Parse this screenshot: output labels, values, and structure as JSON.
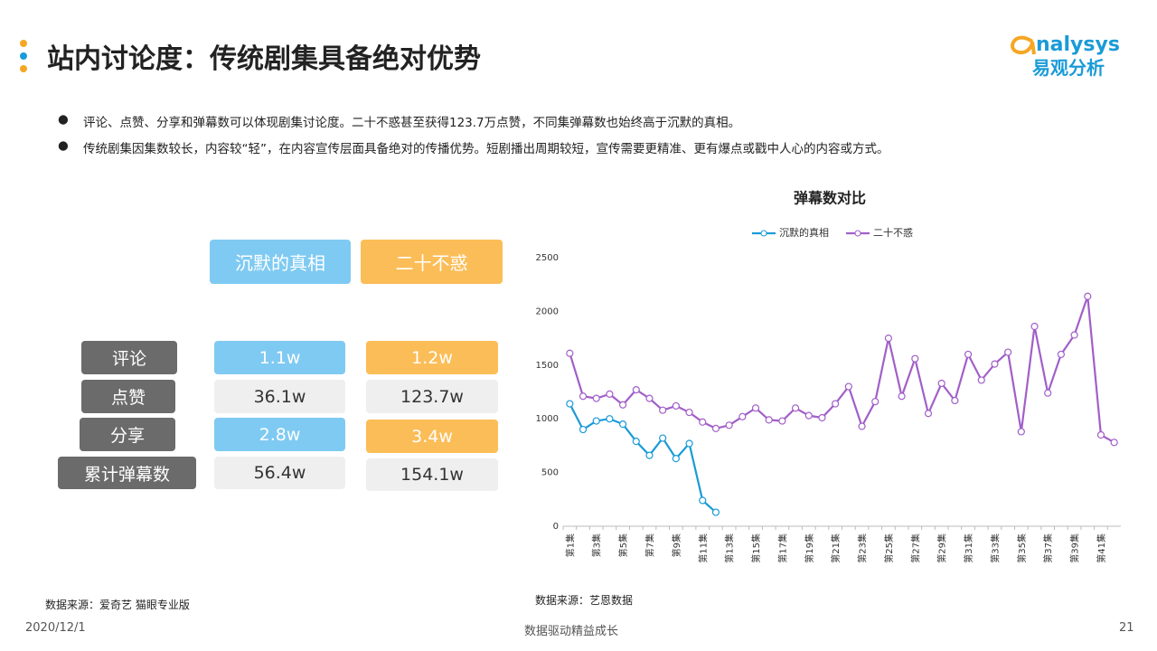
{
  "header": {
    "title": "站内讨论度：传统剧集具备绝对优势"
  },
  "logo": {
    "en": "nalysys",
    "cn": "易观分析"
  },
  "bullets": [
    "评论、点赞、分享和弹幕数可以体现剧集讨论度。二十不惑甚至获得123.7万点赞，不同集弹幕数也始终高于沉默的真相。",
    "传统剧集因集数较长，内容较“轻”，在内容宣传层面具备绝对的传播优势。短剧播出周期较短，宣传需要更精准、更有爆点或戳中人心的内容或方式。"
  ],
  "table": {
    "columns": [
      "沉默的真相",
      "二十不惑"
    ],
    "rows": [
      [
        "评论",
        "1.1w",
        "1.2w"
      ],
      [
        "点赞",
        "36.1w",
        "123.7w"
      ],
      [
        "分享",
        "2.8w",
        "3.4w"
      ],
      [
        "累计弹幕数",
        "56.4w",
        "154.1w"
      ]
    ]
  },
  "chart_data": {
    "type": "line",
    "title": "弹幕数对比",
    "categories": [
      "第1集",
      null,
      "第3集",
      null,
      "第5集",
      null,
      "第7集",
      null,
      "第9集",
      null,
      "第11集",
      null,
      "第13集",
      null,
      "第15集",
      null,
      "第17集",
      null,
      "第19集",
      null,
      "第21集",
      null,
      "第23集",
      null,
      "第25集",
      null,
      "第27集",
      null,
      "第29集",
      null,
      "第31集",
      null,
      "第33集",
      null,
      "第35集",
      null,
      "第37集",
      null,
      "第39集",
      null,
      "第41集",
      null
    ],
    "series": [
      {
        "name": "沉默的真相",
        "color": "#1a9bd7",
        "values": [
          1140,
          900,
          980,
          1000,
          950,
          790,
          660,
          820,
          630,
          770,
          240,
          130,
          null,
          null,
          null,
          null,
          null,
          null,
          null,
          null,
          null,
          null,
          null,
          null,
          null,
          null,
          null,
          null,
          null,
          null,
          null,
          null,
          null,
          null,
          null,
          null,
          null,
          null,
          null,
          null,
          null,
          null
        ]
      },
      {
        "name": "二十不惑",
        "color": "#a15fc9",
        "values": [
          1610,
          1210,
          1190,
          1230,
          1130,
          1270,
          1190,
          1080,
          1120,
          1060,
          970,
          910,
          940,
          1020,
          1100,
          990,
          980,
          1100,
          1030,
          1010,
          1140,
          1300,
          930,
          1160,
          1750,
          1210,
          1560,
          1050,
          1330,
          1170,
          1600,
          1360,
          1510,
          1620,
          880,
          1860,
          1240,
          1600,
          1780,
          2140,
          850,
          780
        ]
      }
    ],
    "ylim": [
      0,
      2500
    ],
    "yticks": [
      0,
      500,
      1000,
      1500,
      2000,
      2500
    ],
    "legend": "top"
  },
  "sources": [
    "数据来源：爱奇艺 猫眼专业版",
    "数据来源：艺恩数据"
  ],
  "footer": {
    "date": "2020/12/1",
    "slogan": "数据驱动精益成长",
    "page": "21"
  }
}
